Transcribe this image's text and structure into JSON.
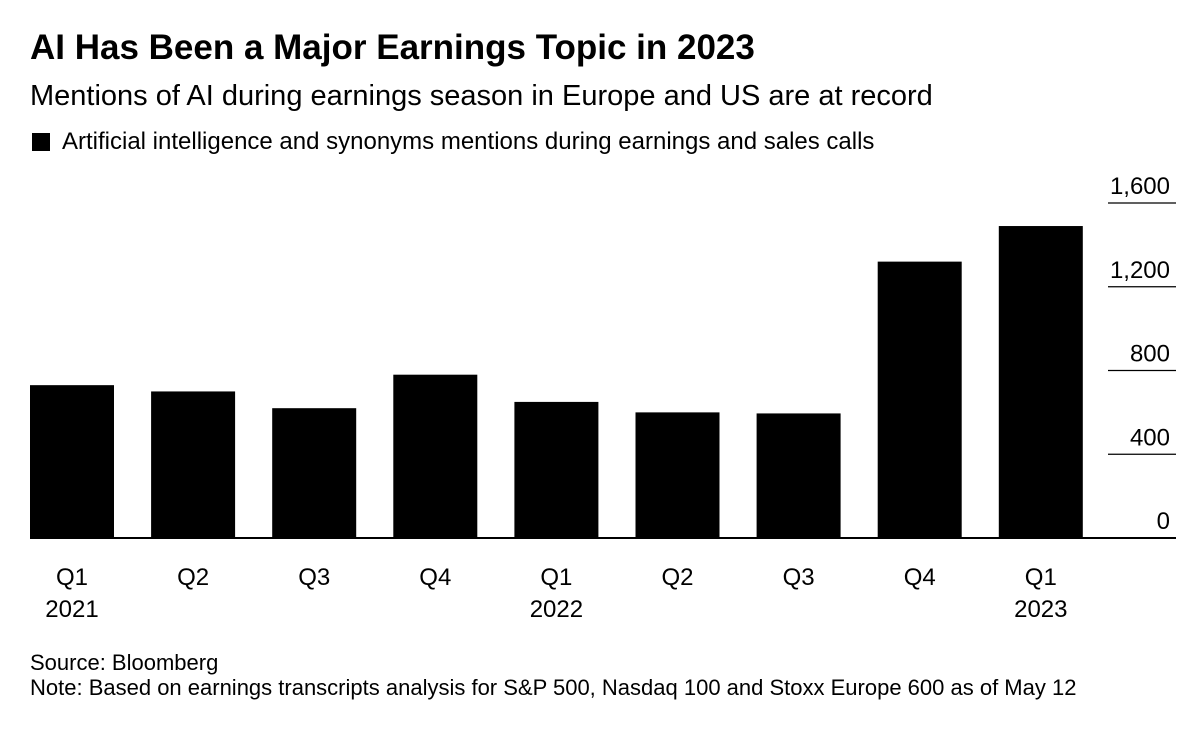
{
  "chart_data": {
    "type": "bar",
    "title": "AI Has Been a Major Earnings Topic in 2023",
    "subtitle": "Mentions of AI during earnings season in Europe and US are at record",
    "series": [
      {
        "name": "Artificial intelligence and synonyms mentions during earnings and sales calls",
        "color": "#000000",
        "values": [
          730,
          700,
          620,
          780,
          650,
          600,
          595,
          1320,
          1490
        ]
      }
    ],
    "categories": [
      "Q1 2021",
      "Q2 2021",
      "Q3 2021",
      "Q4 2021",
      "Q1 2022",
      "Q2 2022",
      "Q3 2022",
      "Q4 2022",
      "Q1 2023"
    ],
    "tick_labels": [
      {
        "quarter": "Q1",
        "year": "2021"
      },
      {
        "quarter": "Q2",
        "year": ""
      },
      {
        "quarter": "Q3",
        "year": ""
      },
      {
        "quarter": "Q4",
        "year": ""
      },
      {
        "quarter": "Q1",
        "year": "2022"
      },
      {
        "quarter": "Q2",
        "year": ""
      },
      {
        "quarter": "Q3",
        "year": ""
      },
      {
        "quarter": "Q4",
        "year": ""
      },
      {
        "quarter": "Q1",
        "year": "2023"
      }
    ],
    "ylim": [
      0,
      1600
    ],
    "yticks": [
      0,
      400,
      800,
      1200,
      1600
    ],
    "ytick_labels": [
      "0",
      "400",
      "800",
      "1,200",
      "1,600"
    ],
    "y_axis_position": "right",
    "legend_position": "top-left",
    "grid": false,
    "xlabel": "",
    "ylabel": ""
  },
  "footer": {
    "source": "Source: Bloomberg",
    "note": "Note: Based on earnings transcripts analysis for S&P 500, Nasdaq 100 and Stoxx Europe 600 as of May 12"
  }
}
